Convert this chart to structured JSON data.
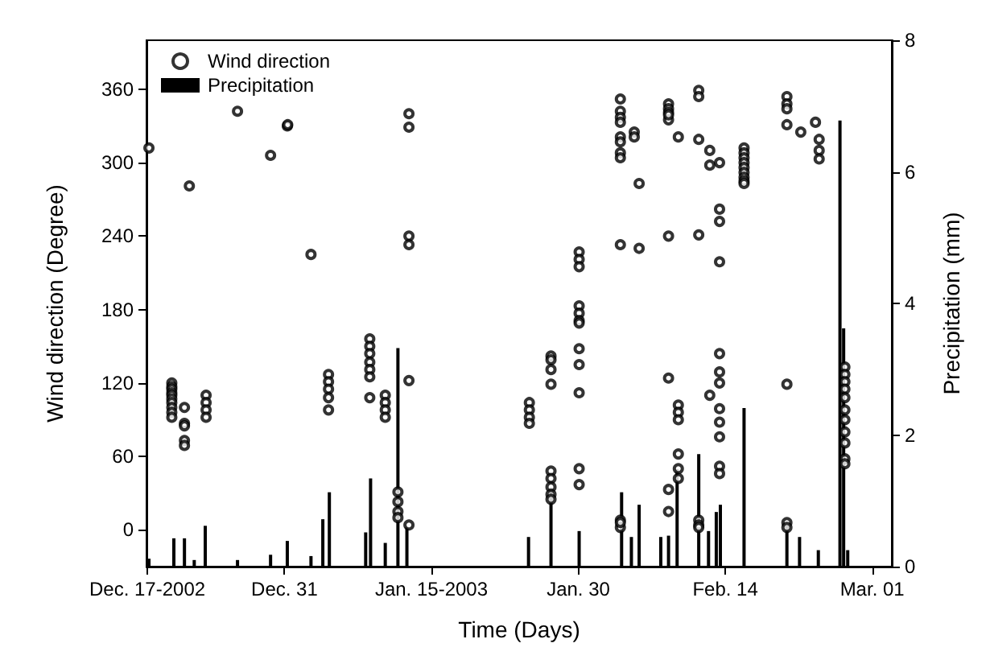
{
  "chart_data": {
    "type": "scatter",
    "xlabel": "Time (Days)",
    "ylabel": "Wind direction (Degree)",
    "y2label": "Precipitation (mm)",
    "xlim": [
      "2002-12-16T22:00",
      "2003-03-03"
    ],
    "xticks": [
      {
        "value": "2002-12-17",
        "label": "Dec. 17-2002"
      },
      {
        "value": "2002-12-31",
        "label": "Dec. 31"
      },
      {
        "value": "2003-01-15",
        "label": "Jan. 15-2003"
      },
      {
        "value": "2003-01-30",
        "label": "Jan. 30"
      },
      {
        "value": "2003-02-14",
        "label": "Feb. 14"
      },
      {
        "value": "2003-03-01",
        "label": "Mar. 01"
      }
    ],
    "ylim": [
      -30,
      400
    ],
    "yticks": [
      0,
      60,
      120,
      180,
      240,
      300,
      360
    ],
    "y2lim": [
      0,
      8
    ],
    "y2ticks": [
      0,
      2,
      4,
      6,
      8
    ],
    "legend": "top left",
    "marker": "circle",
    "series": [
      {
        "name": "Wind direction",
        "color": "#000000",
        "x": [
          "2002-12-17T04:00",
          "2002-12-21T07:00",
          "2002-12-26T05:00",
          "2002-12-29T14:00",
          "2002-12-31T07:00",
          "2002-12-31T08:00",
          "2003-01-02T17:00",
          "2002-12-19T12:00",
          "2002-12-19T12:00",
          "2002-12-19T12:00",
          "2002-12-19T12:00",
          "2002-12-19T12:00",
          "2002-12-19T12:00",
          "2002-12-19T12:00",
          "2002-12-19T12:00",
          "2002-12-19T12:00",
          "2002-12-19T12:00",
          "2002-12-20T19:00",
          "2002-12-20T19:00",
          "2002-12-20T19:00",
          "2002-12-20T19:00",
          "2002-12-20T19:00",
          "2002-12-23T00:00",
          "2002-12-23T00:00",
          "2002-12-23T00:00",
          "2002-12-23T00:00",
          "2003-01-04T12:00",
          "2003-01-04T12:00",
          "2003-01-04T12:00",
          "2003-01-04T12:00",
          "2003-01-04T12:00",
          "2003-01-08T17:00",
          "2003-01-08T17:00",
          "2003-01-08T17:00",
          "2003-01-08T17:00",
          "2003-01-08T17:00",
          "2003-01-08T17:00",
          "2003-01-08T17:00",
          "2003-01-10T07:00",
          "2003-01-10T07:00",
          "2003-01-10T07:00",
          "2003-01-10T07:00",
          "2003-01-12T17:00",
          "2003-01-12T17:00",
          "2003-01-12T17:00",
          "2003-01-12T17:00",
          "2003-01-12T17:00",
          "2003-01-12T17:00",
          "2003-01-11T14:00",
          "2003-01-11T14:00",
          "2003-01-11T14:00",
          "2003-01-11T14:00",
          "2003-01-25T00:00",
          "2003-01-25T00:00",
          "2003-01-25T00:00",
          "2003-01-25T00:00",
          "2003-01-27T05:00",
          "2003-01-27T05:00",
          "2003-01-27T05:00",
          "2003-01-27T05:00",
          "2003-01-27T05:00",
          "2003-01-27T05:00",
          "2003-01-27T05:00",
          "2003-01-27T05:00",
          "2003-01-27T05:00",
          "2003-01-30T02:00",
          "2003-01-30T02:00",
          "2003-01-30T02:00",
          "2003-01-30T02:00",
          "2003-01-30T02:00",
          "2003-01-30T02:00",
          "2003-01-30T02:00",
          "2003-01-30T02:00",
          "2003-01-30T02:00",
          "2003-01-30T02:00",
          "2003-01-30T02:00",
          "2003-01-30T02:00",
          "2003-02-03T07:00",
          "2003-02-03T07:00",
          "2003-02-03T07:00",
          "2003-02-03T07:00",
          "2003-02-03T07:00",
          "2003-02-03T07:00",
          "2003-02-03T07:00",
          "2003-02-03T07:00",
          "2003-02-03T07:00",
          "2003-02-03T07:00",
          "2003-02-03T07:00",
          "2003-02-03T07:00",
          "2003-02-04T17:00",
          "2003-02-04T17:00",
          "2003-02-05T05:00",
          "2003-02-05T05:00",
          "2003-02-08T05:00",
          "2003-02-08T05:00",
          "2003-02-08T05:00",
          "2003-02-08T05:00",
          "2003-02-08T05:00",
          "2003-02-08T05:00",
          "2003-02-08T05:00",
          "2003-02-08T05:00",
          "2003-02-08T05:00",
          "2003-02-09T05:00",
          "2003-02-09T05:00",
          "2003-02-09T05:00",
          "2003-02-09T05:00",
          "2003-02-09T05:00",
          "2003-02-09T05:00",
          "2003-02-09T05:00",
          "2003-02-11T07:00",
          "2003-02-11T07:00",
          "2003-02-11T07:00",
          "2003-02-11T07:00",
          "2003-02-11T07:00",
          "2003-02-11T07:00",
          "2003-02-11T07:00",
          "2003-02-12T10:00",
          "2003-02-12T10:00",
          "2003-02-12T10:00",
          "2003-02-13T10:00",
          "2003-02-13T10:00",
          "2003-02-13T10:00",
          "2003-02-13T10:00",
          "2003-02-13T10:00",
          "2003-02-13T10:00",
          "2003-02-13T10:00",
          "2003-02-13T10:00",
          "2003-02-13T10:00",
          "2003-02-13T10:00",
          "2003-02-13T10:00",
          "2003-02-13T10:00",
          "2003-02-15T22:00",
          "2003-02-15T22:00",
          "2003-02-15T22:00",
          "2003-02-15T22:00",
          "2003-02-15T22:00",
          "2003-02-15T22:00",
          "2003-02-15T22:00",
          "2003-02-15T22:00",
          "2003-02-15T22:00",
          "2003-02-20T07:00",
          "2003-02-20T07:00",
          "2003-02-20T07:00",
          "2003-02-20T07:00",
          "2003-02-20T07:00",
          "2003-02-20T07:00",
          "2003-02-20T07:00",
          "2003-02-21T17:00",
          "2003-02-23T05:00",
          "2003-02-23T14:00",
          "2003-02-23T14:00",
          "2003-02-23T14:00",
          "2003-02-26T05:00",
          "2003-02-26T05:00",
          "2003-02-26T05:00",
          "2003-02-26T05:00",
          "2003-02-26T05:00",
          "2003-02-26T05:00",
          "2003-02-26T05:00",
          "2003-02-26T05:00",
          "2003-02-26T05:00",
          "2003-02-26T05:00",
          "2003-02-26T05:00"
        ],
        "values": [
          312,
          281,
          342,
          306,
          330,
          331,
          225,
          120,
          117,
          115,
          112,
          110,
          107,
          104,
          100,
          96,
          92,
          100,
          87,
          85,
          73,
          69,
          110,
          104,
          98,
          92,
          127,
          121,
          115,
          108,
          98,
          156,
          150,
          144,
          137,
          131,
          125,
          108,
          110,
          104,
          98,
          92,
          340,
          329,
          240,
          233,
          122,
          4,
          31,
          23,
          15,
          10,
          104,
          98,
          92,
          87,
          142,
          139,
          131,
          119,
          48,
          42,
          35,
          29,
          25,
          227,
          221,
          215,
          183,
          177,
          171,
          169,
          148,
          135,
          112,
          50,
          37,
          352,
          342,
          337,
          333,
          321,
          317,
          308,
          304,
          233,
          8,
          2,
          6,
          325,
          321,
          283,
          230,
          240,
          348,
          344,
          341,
          335,
          339,
          124,
          33,
          15,
          321,
          102,
          96,
          90,
          62,
          50,
          42,
          359,
          354,
          319,
          241,
          8,
          4,
          2,
          310,
          298,
          110,
          300,
          262,
          252,
          219,
          144,
          129,
          120,
          99,
          88,
          76,
          52,
          46,
          312,
          308,
          304,
          300,
          296,
          292,
          288,
          285,
          283,
          354,
          348,
          344,
          331,
          119,
          6,
          2,
          325,
          333,
          319,
          310,
          303,
          133,
          127,
          121,
          115,
          108,
          98,
          90,
          80,
          71,
          58,
          54
        ]
      },
      {
        "name": "Precipitation",
        "type": "bar",
        "axis": "y2",
        "color": "#000000",
        "x": [
          "2002-12-17T04:00",
          "2002-12-19T17:00",
          "2002-12-20T19:00",
          "2002-12-21T19:00",
          "2002-12-22T22:00",
          "2002-12-26T05:00",
          "2002-12-29T14:00",
          "2002-12-31T07:00",
          "2003-01-02T17:00",
          "2003-01-03T22:00",
          "2003-01-04T14:00",
          "2003-01-08T07:00",
          "2003-01-08T19:00",
          "2003-01-10T07:00",
          "2003-01-11T14:00",
          "2003-01-12T12:00",
          "2003-01-24T22:00",
          "2003-01-27T05:00",
          "2003-01-30T02:00",
          "2003-02-03T10:00",
          "2003-02-04T10:00",
          "2003-02-05T05:00",
          "2003-02-07T10:00",
          "2003-02-08T05:00",
          "2003-02-09T02:00",
          "2003-02-11T07:00",
          "2003-02-12T07:00",
          "2003-02-13T02:00",
          "2003-02-13T12:00",
          "2003-02-15T22:00",
          "2003-02-20T07:00",
          "2003-02-21T14:00",
          "2003-02-23T12:00",
          "2003-02-25T17:00",
          "2003-02-26T02:00",
          "2003-02-26T12:00"
        ],
        "values": [
          0.12,
          0.43,
          0.43,
          0.1,
          0.62,
          0.1,
          0.18,
          0.39,
          0.16,
          0.72,
          1.13,
          0.52,
          1.34,
          0.36,
          3.32,
          0.6,
          0.45,
          1.2,
          0.54,
          1.13,
          0.45,
          0.94,
          0.45,
          0.47,
          1.48,
          1.71,
          0.54,
          0.83,
          0.94,
          2.41,
          0.62,
          0.45,
          0.25,
          6.78,
          3.62,
          0.25
        ]
      }
    ]
  }
}
